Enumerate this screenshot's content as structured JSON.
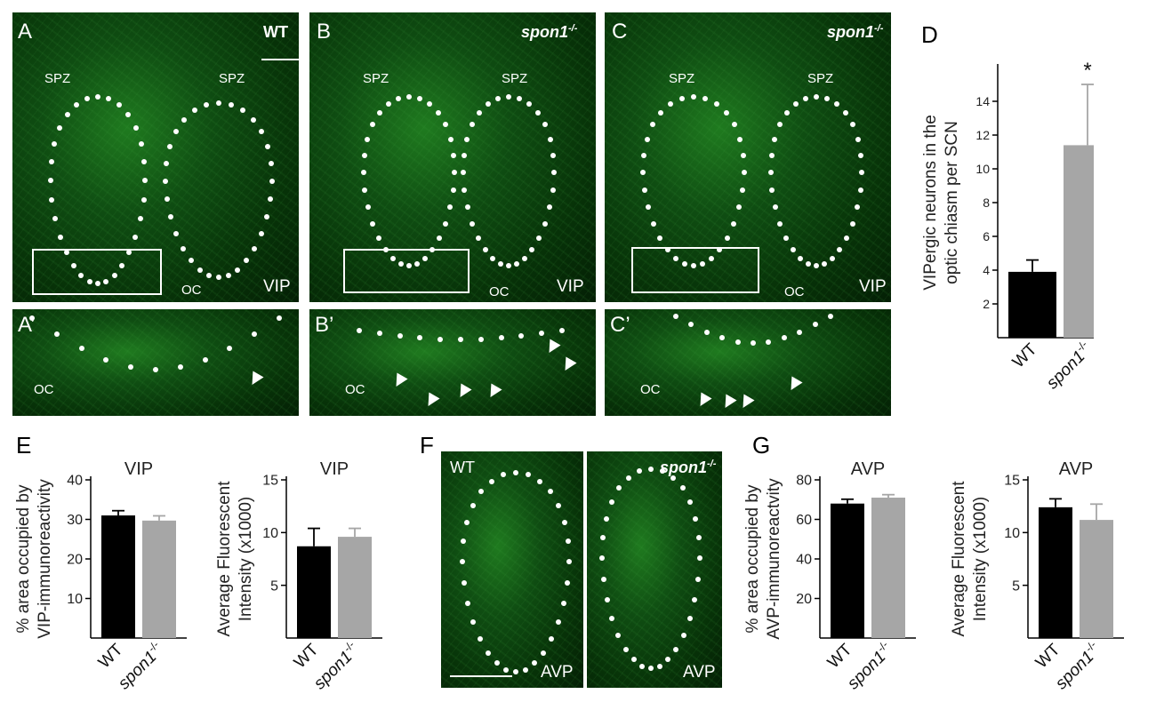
{
  "panels": {
    "A": {
      "letter": "A",
      "genotype": "WT",
      "spz_left": "SPZ",
      "spz_right": "SPZ",
      "oc": "OC",
      "marker": "VIP"
    },
    "B": {
      "letter": "B",
      "genotype": "spon1",
      "sup": "-/-",
      "spz_left": "SPZ",
      "spz_right": "SPZ",
      "oc": "OC",
      "marker": "VIP"
    },
    "C": {
      "letter": "C",
      "genotype": "spon1",
      "sup": "-/-",
      "spz_left": "SPZ",
      "spz_right": "SPZ",
      "oc": "OC",
      "marker": "VIP"
    },
    "A2": {
      "letter": "A’",
      "oc": "OC"
    },
    "B2": {
      "letter": "B’",
      "oc": "OC"
    },
    "C2": {
      "letter": "C’",
      "oc": "OC"
    },
    "F": {
      "letter": "F",
      "left_genotype": "WT",
      "right_genotype": "spon1",
      "sup": "-/-",
      "left_marker": "AVP",
      "right_marker": "AVP"
    },
    "D_letter": "D",
    "E_letter": "E",
    "G_letter": "G"
  },
  "categories": {
    "wt": "WT",
    "ko": "spon1",
    "ko_sup": "-/-"
  },
  "colors": {
    "wt": "#000000",
    "ko": "#a6a6a6"
  },
  "chart_data": [
    {
      "id": "D",
      "type": "bar",
      "title": "",
      "ylabel_lines": [
        "VIPergic neurons in the",
        "optic chiasm per SCN"
      ],
      "categories": [
        "WT",
        "spon1-/-"
      ],
      "values": [
        3.9,
        11.4
      ],
      "errors": [
        0.7,
        3.6
      ],
      "ylim": [
        0,
        16
      ],
      "yticks": [
        2,
        4,
        6,
        8,
        10,
        12,
        14
      ],
      "annotation": "*"
    },
    {
      "id": "E1",
      "type": "bar",
      "title": "VIP",
      "ylabel_lines": [
        "% area occupied by",
        "VIP-immunoreactivity"
      ],
      "categories": [
        "WT",
        "spon1-/-"
      ],
      "values": [
        31,
        29.7
      ],
      "errors": [
        1.2,
        1.2
      ],
      "ylim": [
        0,
        40
      ],
      "yticks": [
        10,
        20,
        30,
        40
      ]
    },
    {
      "id": "E2",
      "type": "bar",
      "title": "VIP",
      "ylabel_lines": [
        "Average Fluorescent",
        "Intensity (x1000)"
      ],
      "categories": [
        "WT",
        "spon1-/-"
      ],
      "values": [
        8.7,
        9.6
      ],
      "errors": [
        1.7,
        0.8
      ],
      "ylim": [
        0,
        15
      ],
      "yticks": [
        5,
        10,
        15
      ]
    },
    {
      "id": "G1",
      "type": "bar",
      "title": "AVP",
      "ylabel_lines": [
        "% area occupied by",
        "AVP-immunoreactvity"
      ],
      "categories": [
        "WT",
        "spon1-/-"
      ],
      "values": [
        68,
        71
      ],
      "errors": [
        2.2,
        1.5
      ],
      "ylim": [
        0,
        80
      ],
      "yticks": [
        20,
        40,
        60,
        80
      ]
    },
    {
      "id": "G2",
      "type": "bar",
      "title": "AVP",
      "ylabel_lines": [
        "Average Fluorescent",
        "Intensity (x1000)"
      ],
      "categories": [
        "WT",
        "spon1-/-"
      ],
      "values": [
        12.4,
        11.2
      ],
      "errors": [
        0.8,
        1.5
      ],
      "ylim": [
        0,
        15
      ],
      "yticks": [
        5,
        10,
        15
      ]
    }
  ]
}
